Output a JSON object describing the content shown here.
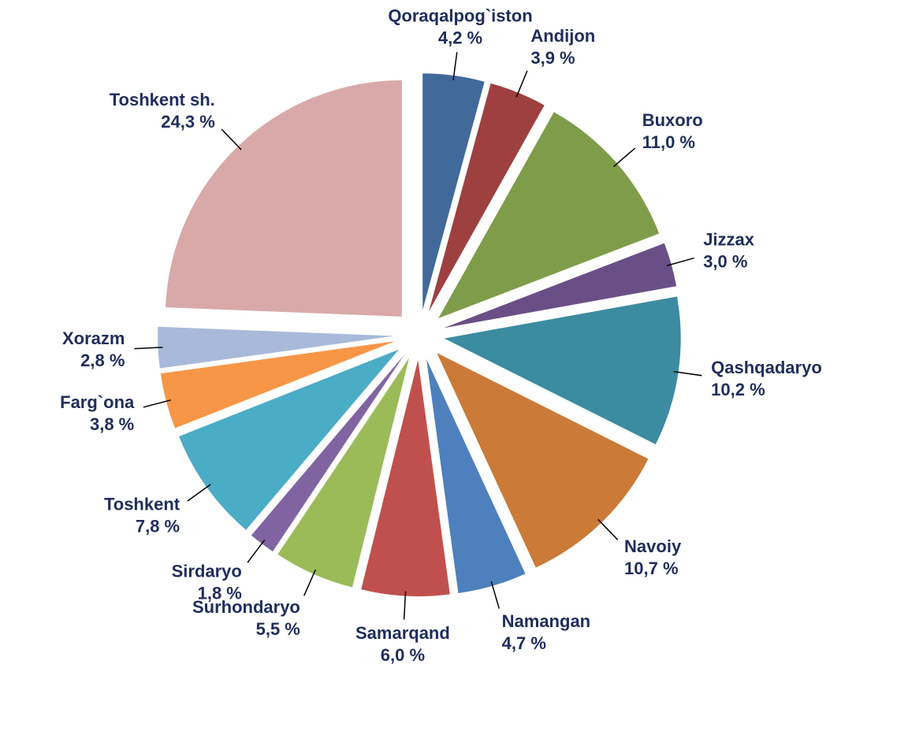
{
  "chart_data": {
    "type": "pie",
    "categories": [
      "Qoraqalpog`iston",
      "Andijon",
      "Buxoro",
      "Jizzax",
      "Qashqadaryo",
      "Navoiy",
      "Namangan",
      "Samarqand",
      "Surhondaryo",
      "Sirdaryo",
      "Toshkent",
      "Farg`ona",
      "Xorazm",
      "Toshkent sh."
    ],
    "values": [
      4.2,
      3.9,
      11.0,
      3.0,
      10.2,
      10.7,
      4.7,
      6.0,
      5.5,
      1.8,
      7.8,
      3.8,
      2.8,
      24.3
    ],
    "value_labels": [
      "4,2 %",
      "3,9 %",
      "11,0 %",
      "3,0 %",
      "10,2 %",
      "10,7 %",
      "4,7 %",
      "6,0 %",
      "5,5 %",
      "1,8 %",
      "7,8 %",
      "3,8 %",
      "2,8 %",
      "24,3 %"
    ],
    "colors": [
      "#41699a",
      "#9e4040",
      "#7f9c4a",
      "#6a4f87",
      "#3b8ba1",
      "#cc7a38",
      "#4e80bd",
      "#c0504d",
      "#9bbb59",
      "#8064a2",
      "#4bacc6",
      "#f79646",
      "#a9b9d9",
      "#d9a9a9"
    ]
  }
}
